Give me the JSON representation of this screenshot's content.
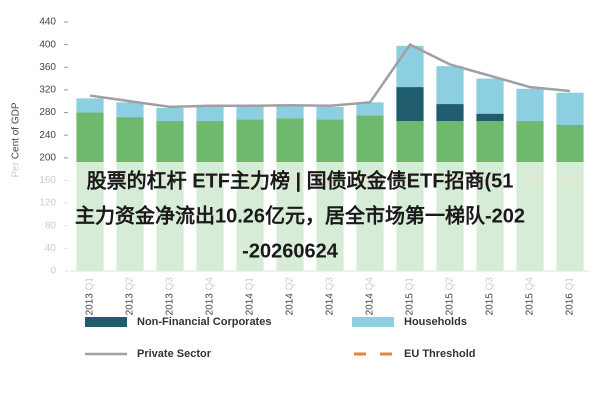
{
  "chart_data": {
    "type": "bar",
    "ylabel": "Per Cent of GDP",
    "categories": [
      "2013 Q1",
      "2013 Q2",
      "2013 Q3",
      "2013 Q4",
      "2014 Q1",
      "2014 Q2",
      "2014 Q3",
      "2014 Q4",
      "2015 Q1",
      "2015 Q2",
      "2015 Q3",
      "2015 Q4",
      "2016 Q1"
    ],
    "ylim": [
      0,
      440
    ],
    "yticks": [
      0,
      40,
      80,
      120,
      160,
      200,
      240,
      280,
      320,
      360,
      400,
      440
    ],
    "series": [
      {
        "style": "bar",
        "color": "#6fb96f",
        "values": [
          280,
          272,
          265,
          265,
          268,
          270,
          268,
          275,
          265,
          265,
          265,
          265,
          258
        ]
      },
      {
        "name": "Non-Financial Corporates",
        "style": "bar",
        "color": "#1f5c6e",
        "values": [
          0,
          0,
          0,
          0,
          0,
          0,
          0,
          0,
          60,
          30,
          13,
          0,
          0
        ]
      },
      {
        "name": "Households",
        "style": "bar",
        "color": "#8ccfe0",
        "values": [
          25,
          26,
          23,
          25,
          24,
          22,
          22,
          23,
          73,
          67,
          62,
          57,
          57
        ]
      },
      {
        "name": "Private Sector",
        "style": "line",
        "color": "#a0a0a0",
        "values": [
          310,
          300,
          290,
          292,
          292,
          293,
          292,
          298,
          400,
          365,
          345,
          325,
          318
        ]
      },
      {
        "name": "EU Threshold",
        "style": "dash",
        "color": "#e8843a",
        "values": [
          160,
          160,
          160,
          160,
          160,
          160,
          160,
          160,
          160,
          160,
          160,
          160,
          160
        ]
      }
    ]
  },
  "overlay": {
    "lines": [
      "股票的杠杆 ETF主力榜 | 国债政金债ETF招商(51",
      "主力资金净流出10.26亿元，居全市场第一梯队-202",
      "-20260624"
    ]
  }
}
